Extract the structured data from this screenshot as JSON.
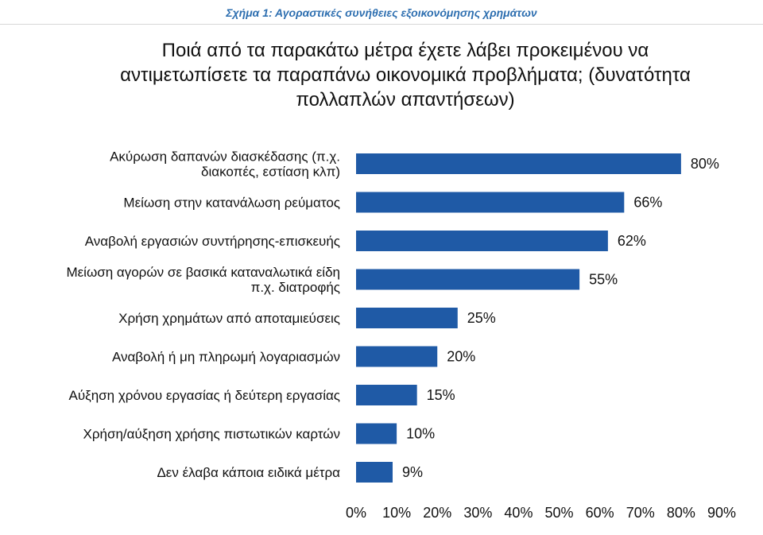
{
  "figure_caption": "Σχήμα 1: Αγοραστικές συνήθειες εξοικονόμησης χρημάτων",
  "chart_data": {
    "type": "bar",
    "orientation": "horizontal",
    "title": "Ποιά από τα παρακάτω μέτρα έχετε λάβει προκειμένου να αντιμετωπίσετε τα παραπάνω οικονομικά προβλήματα; (δυνατότητα πολλαπλών απαντήσεων)",
    "categories": [
      [
        "Ακύρωση δαπανών διασκέδασης (π.χ.",
        "διακοπές, εστίαση κλπ)"
      ],
      [
        "Μείωση στην κατανάλωση ρεύματος"
      ],
      [
        "Αναβολή εργασιών συντήρησης-επισκευής"
      ],
      [
        "Μείωση αγορών σε βασικά καταναλωτικά είδη",
        "π.χ. διατροφής"
      ],
      [
        "Χρήση χρημάτων από αποταμιεύσεις"
      ],
      [
        "Αναβολή ή μη πληρωμή λογαριασμών"
      ],
      [
        "Αύξηση χρόνου εργασίας ή δεύτερη εργασίας"
      ],
      [
        "Χρήση/αύξηση χρήσης πιστωτικών καρτών"
      ],
      [
        "Δεν έλαβα κάποια ειδικά μέτρα"
      ]
    ],
    "values": [
      80,
      66,
      62,
      55,
      25,
      20,
      15,
      10,
      9
    ],
    "value_labels": [
      "80%",
      "66%",
      "62%",
      "55%",
      "25%",
      "20%",
      "15%",
      "10%",
      "9%"
    ],
    "x_ticks": [
      "0%",
      "10%",
      "20%",
      "30%",
      "40%",
      "50%",
      "60%",
      "70%",
      "80%",
      "90%"
    ],
    "xlim": [
      0,
      90
    ],
    "bar_color": "#1f5aa6",
    "grid": false,
    "legend": "none"
  }
}
